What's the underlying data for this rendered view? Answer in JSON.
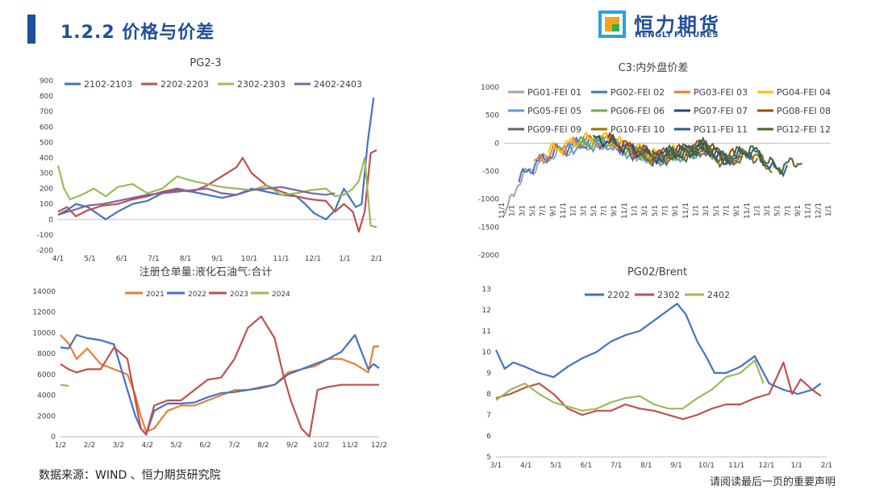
{
  "header": {
    "title": "1.2.2 价格与价差"
  },
  "logo": {
    "cn": "恒力期货",
    "en": "HENGLI FUTURES",
    "colors": [
      "#2aa3df",
      "#f5a21b",
      "#2eb04b",
      "#1f4e9c"
    ]
  },
  "footer": {
    "source": "数据来源：WIND 、恒力期货研究院",
    "disclaimer": "请阅读最后一页的重要声明"
  },
  "chart_data": [
    {
      "id": "pg23",
      "type": "line",
      "title": "PG2-3",
      "ylim": [
        -200,
        900
      ],
      "yticks": [
        "900",
        "800",
        "700",
        "600",
        "500",
        "400",
        "300",
        "200",
        "100",
        "0",
        "-100",
        "-200"
      ],
      "xticks": [
        "4/1",
        "5/1",
        "6/1",
        "7/1",
        "8/1",
        "9/1",
        "10/1",
        "11/1",
        "12/1",
        "1/1",
        "2/1"
      ],
      "legend_position": "top",
      "series": [
        {
          "name": "2102-2103",
          "color": "#4472c4",
          "x": [
            0,
            0.3,
            0.6,
            1,
            1.3,
            1.6,
            2,
            2.5,
            3,
            3.5,
            4,
            4.5,
            5,
            5.5,
            6,
            6.5,
            7,
            7.5,
            8,
            8.3,
            8.6,
            9,
            9.3,
            9.6,
            10,
            10.2,
            10.4,
            10.6
          ],
          "y": [
            30,
            60,
            100,
            80,
            40,
            0,
            50,
            100,
            120,
            170,
            190,
            180,
            160,
            140,
            160,
            200,
            180,
            160,
            150,
            100,
            40,
            0,
            60,
            200,
            80,
            100,
            500,
            790
          ]
        },
        {
          "name": "2202-2203",
          "color": "#c0504d",
          "x": [
            0,
            0.3,
            0.6,
            1,
            1.5,
            2,
            2.5,
            3,
            3.5,
            4,
            4.5,
            5,
            5.5,
            6,
            6.2,
            6.5,
            7,
            7.5,
            8,
            8.5,
            9,
            9.3,
            9.6,
            9.9,
            10.1,
            10.3,
            10.5,
            10.7
          ],
          "y": [
            50,
            80,
            20,
            60,
            90,
            100,
            130,
            150,
            180,
            200,
            180,
            220,
            280,
            340,
            400,
            300,
            220,
            180,
            150,
            130,
            120,
            50,
            100,
            50,
            -80,
            50,
            430,
            450
          ]
        },
        {
          "name": "2302-2303",
          "color": "#9bbb59",
          "x": [
            0,
            0.2,
            0.4,
            0.8,
            1.2,
            1.6,
            2,
            2.5,
            3,
            3.5,
            4,
            4.5,
            5,
            5.5,
            6,
            6.5,
            7,
            7.5,
            8,
            8.5,
            9,
            9.3,
            9.6,
            9.9,
            10.1,
            10.3,
            10.5,
            10.7
          ],
          "y": [
            350,
            200,
            130,
            160,
            200,
            150,
            210,
            230,
            170,
            200,
            280,
            250,
            230,
            210,
            200,
            190,
            220,
            160,
            170,
            190,
            200,
            150,
            160,
            200,
            250,
            400,
            -40,
            -50
          ]
        },
        {
          "name": "2402-2403",
          "color": "#8064a2",
          "x": [
            0,
            0.5,
            1,
            1.5,
            2,
            2.5,
            3,
            3.5,
            4,
            4.5,
            5,
            5.5,
            6,
            6.5,
            7,
            7.5,
            8,
            8.5,
            9,
            9.3
          ],
          "y": [
            30,
            60,
            90,
            100,
            120,
            140,
            160,
            170,
            180,
            190,
            200,
            170,
            160,
            190,
            200,
            210,
            190,
            170,
            160,
            170
          ]
        }
      ]
    },
    {
      "id": "c3",
      "type": "line",
      "title": "C3:内外盘价差",
      "ylim": [
        -2000,
        1000
      ],
      "yticks": [
        "1000",
        "500",
        "0",
        "-500",
        "-1000",
        "-1500",
        "-2000"
      ],
      "xticks": [
        "11/1",
        "1/1",
        "3/1",
        "5/1",
        "7/1",
        "9/1",
        "11/1",
        "1/1",
        "3/1",
        "5/1",
        "7/1",
        "9/1",
        "11/1",
        "1/1",
        "3/1",
        "5/1",
        "7/1",
        "9/1",
        "11/1",
        "1/1",
        "3/1",
        "5/1",
        "7/1",
        "9/1",
        "11/1",
        "1/1",
        "3/1",
        "5/1",
        "7/1",
        "9/1",
        "11/1",
        "12/1",
        "1/1"
      ],
      "legend_position": "top",
      "series": [
        {
          "name": "PG01-FEI 01",
          "color": "#a5a5a5"
        },
        {
          "name": "PG02-FEI 02",
          "color": "#4472c4"
        },
        {
          "name": "PG03-FEI 03",
          "color": "#ed7d31"
        },
        {
          "name": "PG04-FEI 04",
          "color": "#ffc000"
        },
        {
          "name": "PG05-FEI 05",
          "color": "#5b9bd5"
        },
        {
          "name": "PG06-FEI 06",
          "color": "#70ad47"
        },
        {
          "name": "PG07-FEI 07",
          "color": "#264478"
        },
        {
          "name": "PG08-FEI 08",
          "color": "#9e480e"
        },
        {
          "name": "PG09-FEI 09",
          "color": "#636363"
        },
        {
          "name": "PG10-FEI 10",
          "color": "#997300"
        },
        {
          "name": "PG11-FEI 11",
          "color": "#255e91"
        },
        {
          "name": "PG12-FEI 12",
          "color": "#43682b"
        }
      ]
    },
    {
      "id": "warrants",
      "type": "line",
      "title": "注册仓单量:液化石油气:合计",
      "ylim": [
        0,
        14000
      ],
      "yticks": [
        "14000",
        "12000",
        "10000",
        "8000",
        "6000",
        "4000",
        "2000",
        "0"
      ],
      "xticks": [
        "1/2",
        "2/2",
        "3/2",
        "4/2",
        "5/2",
        "6/2",
        "7/2",
        "8/2",
        "9/2",
        "10/2",
        "11/2",
        "12/2"
      ],
      "legend_position": "top",
      "series": [
        {
          "name": "2021",
          "color": "#ed7d31",
          "x": [
            0,
            0.3,
            0.6,
            1,
            1.5,
            2,
            2.5,
            2.8,
            3,
            3.2,
            3.5,
            4,
            4.5,
            5,
            5.5,
            6,
            6.5,
            7,
            7.5,
            8,
            8.5,
            9,
            9.5,
            10,
            10.5,
            11,
            11.5,
            11.7,
            11.9
          ],
          "y": [
            9800,
            9000,
            7500,
            8500,
            7000,
            6500,
            6000,
            4000,
            2000,
            500,
            800,
            2500,
            3000,
            3000,
            3500,
            4000,
            4500,
            4500,
            4800,
            5000,
            6200,
            6500,
            6800,
            7500,
            7500,
            7000,
            6200,
            8700,
            8700
          ]
        },
        {
          "name": "2022",
          "color": "#4472c4",
          "x": [
            0,
            0.3,
            0.6,
            1,
            1.5,
            2,
            2.5,
            2.8,
            3,
            3.2,
            3.5,
            4,
            4.5,
            5,
            5.5,
            6,
            6.5,
            7,
            7.5,
            8,
            8.5,
            9,
            9.5,
            10,
            10.5,
            11,
            11.5,
            11.7,
            11.9
          ],
          "y": [
            8600,
            8500,
            9800,
            9500,
            9300,
            8900,
            4500,
            2000,
            800,
            200,
            2500,
            3200,
            3200,
            3300,
            3800,
            4200,
            4300,
            4500,
            4700,
            5000,
            6000,
            6500,
            7000,
            7500,
            8200,
            9800,
            6500,
            7000,
            6600
          ]
        },
        {
          "name": "2023",
          "color": "#c0504d",
          "x": [
            0,
            0.3,
            0.6,
            1,
            1.5,
            2,
            2.5,
            2.8,
            3,
            3.2,
            3.5,
            4,
            4.5,
            5,
            5.5,
            6,
            6.5,
            7,
            7.5,
            8,
            8.3,
            8.6,
            9,
            9.3,
            9.6,
            10,
            10.5,
            11,
            11.5,
            11.9
          ],
          "y": [
            7000,
            6500,
            6200,
            6500,
            6500,
            8600,
            7500,
            3500,
            800,
            200,
            3000,
            3500,
            3500,
            4500,
            5500,
            5700,
            7500,
            10500,
            11600,
            9500,
            6200,
            3500,
            800,
            0,
            4500,
            4800,
            5000,
            5000,
            5000,
            5000
          ]
        },
        {
          "name": "2024",
          "color": "#9bbb59",
          "x": [
            0,
            0.3
          ],
          "y": [
            5000,
            4900
          ]
        }
      ]
    },
    {
      "id": "pgbrent",
      "type": "line",
      "title": "PG02/Brent",
      "ylim": [
        5,
        13
      ],
      "yticks": [
        "13",
        "12",
        "11",
        "10",
        "9",
        "8",
        "7",
        "6",
        "5"
      ],
      "xticks": [
        "3/1",
        "4/1",
        "5/1",
        "6/1",
        "7/1",
        "8/1",
        "9/1",
        "10/1",
        "11/1",
        "12/1",
        "1/1",
        "2/1"
      ],
      "legend_position": "top",
      "series": [
        {
          "name": "2202",
          "color": "#4472c4",
          "x": [
            0,
            0.3,
            0.6,
            1,
            1.5,
            2,
            2.5,
            3,
            3.5,
            4,
            4.5,
            5,
            5.5,
            6,
            6.3,
            6.6,
            7,
            7.3,
            7.6,
            8,
            8.5,
            9,
            9.5,
            10,
            10.5,
            11,
            11.3
          ],
          "y": [
            10.1,
            9.2,
            9.5,
            9.3,
            9.0,
            8.8,
            9.3,
            9.7,
            10.0,
            10.5,
            10.8,
            11.0,
            11.5,
            12.0,
            12.3,
            11.8,
            10.5,
            9.8,
            9.0,
            9.0,
            9.3,
            9.8,
            8.5,
            8.2,
            8.0,
            8.2,
            8.5
          ]
        },
        {
          "name": "2302",
          "color": "#c0504d",
          "x": [
            0,
            0.5,
            1,
            1.5,
            2,
            2.5,
            3,
            3.5,
            4,
            4.5,
            5,
            5.5,
            6,
            6.5,
            7,
            7.5,
            8,
            8.5,
            9,
            9.5,
            10,
            10.3,
            10.6,
            11,
            11.3
          ],
          "y": [
            7.8,
            8.0,
            8.3,
            8.5,
            8.0,
            7.3,
            7.0,
            7.2,
            7.2,
            7.5,
            7.3,
            7.2,
            7.0,
            6.8,
            7.0,
            7.3,
            7.5,
            7.5,
            7.8,
            8.0,
            9.5,
            8.0,
            8.7,
            8.2,
            7.9
          ]
        },
        {
          "name": "2402",
          "color": "#9bbb59",
          "x": [
            0,
            0.5,
            1,
            1.5,
            2,
            2.5,
            3,
            3.5,
            4,
            4.5,
            5,
            5.5,
            6,
            6.5,
            7,
            7.5,
            8,
            8.5,
            9,
            9.3
          ],
          "y": [
            7.7,
            8.2,
            8.5,
            8.0,
            7.6,
            7.4,
            7.2,
            7.3,
            7.6,
            7.8,
            7.9,
            7.5,
            7.3,
            7.3,
            7.8,
            8.2,
            8.8,
            9.0,
            9.6,
            8.5
          ]
        }
      ]
    }
  ]
}
